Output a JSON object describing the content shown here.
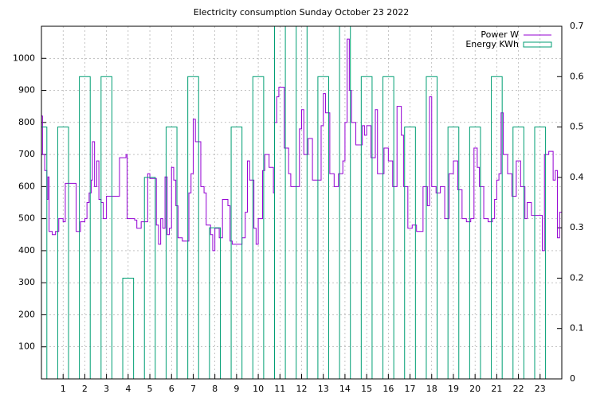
{
  "chart_data": {
    "type": "line",
    "title": "Electricity consumption Sunday October 23 2022",
    "xlim": [
      0,
      24
    ],
    "xticks": [
      1,
      2,
      3,
      4,
      5,
      6,
      7,
      8,
      9,
      10,
      11,
      12,
      13,
      14,
      15,
      16,
      17,
      18,
      19,
      20,
      21,
      22,
      23
    ],
    "ylim": [
      0,
      1100
    ],
    "yticks": [
      100,
      200,
      300,
      400,
      500,
      600,
      700,
      800,
      900,
      1000
    ],
    "y2lim": [
      0,
      0.7
    ],
    "y2ticks": [
      0,
      0.1,
      0.2,
      0.3,
      0.4,
      0.5,
      0.6,
      0.7
    ],
    "grid": true,
    "legend": "top-right",
    "series": [
      {
        "name": "Power W",
        "color": "#9400d3",
        "style": "steps",
        "x": [
          0,
          0.05,
          0.15,
          0.25,
          0.3,
          0.35,
          0.5,
          0.65,
          0.8,
          1.0,
          1.1,
          1.3,
          1.6,
          1.8,
          2.0,
          2.1,
          2.2,
          2.3,
          2.35,
          2.45,
          2.55,
          2.65,
          2.75,
          2.85,
          3.0,
          3.2,
          3.5,
          3.6,
          3.85,
          3.9,
          3.95,
          4.3,
          4.4,
          4.6,
          4.8,
          4.9,
          5.0,
          5.25,
          5.3,
          5.4,
          5.5,
          5.6,
          5.7,
          5.8,
          5.9,
          6.0,
          6.1,
          6.2,
          6.3,
          6.5,
          6.8,
          6.9,
          7.0,
          7.1,
          7.3,
          7.35,
          7.5,
          7.6,
          7.8,
          7.9,
          8.0,
          8.2,
          8.35,
          8.6,
          8.7,
          8.8,
          9.0,
          9.25,
          9.4,
          9.5,
          9.6,
          9.8,
          9.9,
          10.0,
          10.2,
          10.3,
          10.5,
          10.7,
          10.75,
          10.85,
          10.95,
          11.2,
          11.4,
          11.5,
          11.8,
          11.9,
          12.0,
          12.1,
          12.3,
          12.5,
          12.8,
          12.9,
          13.0,
          13.1,
          13.3,
          13.5,
          13.7,
          13.9,
          14.0,
          14.1,
          14.2,
          14.3,
          14.5,
          14.8,
          14.9,
          15.0,
          15.2,
          15.4,
          15.5,
          15.8,
          16.0,
          16.2,
          16.4,
          16.6,
          16.7,
          16.9,
          17.1,
          17.3,
          17.6,
          17.8,
          17.9,
          18.0,
          18.2,
          18.4,
          18.6,
          18.8,
          19.0,
          19.2,
          19.4,
          19.6,
          19.8,
          19.95,
          20.1,
          20.2,
          20.4,
          20.6,
          20.8,
          20.9,
          21.0,
          21.1,
          21.2,
          21.3,
          21.5,
          21.7,
          21.9,
          22.1,
          22.3,
          22.4,
          22.6,
          22.8,
          23.1,
          23.2,
          23.4,
          23.6,
          23.7,
          23.8,
          23.9,
          24.0
        ],
        "values": [
          820,
          700,
          650,
          560,
          630,
          460,
          450,
          460,
          500,
          490,
          610,
          610,
          460,
          490,
          500,
          550,
          580,
          620,
          740,
          600,
          680,
          560,
          550,
          500,
          570,
          570,
          570,
          690,
          690,
          700,
          500,
          495,
          470,
          490,
          490,
          640,
          625,
          625,
          480,
          420,
          500,
          470,
          630,
          450,
          470,
          660,
          620,
          540,
          440,
          430,
          580,
          640,
          810,
          740,
          740,
          600,
          580,
          480,
          450,
          400,
          470,
          440,
          560,
          540,
          430,
          420,
          420,
          440,
          520,
          680,
          620,
          470,
          420,
          500,
          650,
          700,
          660,
          580,
          800,
          880,
          910,
          720,
          640,
          600,
          600,
          780,
          840,
          700,
          750,
          620,
          620,
          790,
          890,
          830,
          640,
          600,
          640,
          680,
          800,
          1060,
          900,
          800,
          730,
          790,
          760,
          790,
          690,
          840,
          640,
          720,
          680,
          600,
          850,
          760,
          600,
          470,
          480,
          460,
          600,
          540,
          880,
          600,
          580,
          600,
          500,
          640,
          680,
          590,
          500,
          490,
          500,
          720,
          660,
          600,
          500,
          490,
          500,
          560,
          620,
          640,
          830,
          700,
          640,
          570,
          680,
          600,
          500,
          550,
          510,
          510,
          400,
          700,
          710,
          620,
          650,
          440,
          520,
          500
        ]
      },
      {
        "name": "Energy KWh",
        "color": "#009e73",
        "style": "boxes",
        "axis": "y2",
        "x": [
          0,
          1,
          2,
          3,
          4,
          5,
          6,
          7,
          8,
          9,
          10,
          11,
          12,
          13,
          14,
          15,
          16,
          17,
          18,
          19,
          20,
          21,
          22,
          23
        ],
        "values": [
          0.5,
          0.5,
          0.6,
          0.6,
          0.2,
          0.4,
          0.5,
          0.6,
          0.3,
          0.5,
          0.6,
          0.7,
          0.7,
          0.6,
          0.7,
          0.6,
          0.6,
          0.5,
          0.6,
          0.5,
          0.5,
          0.6,
          0.5,
          0.5
        ]
      }
    ]
  }
}
